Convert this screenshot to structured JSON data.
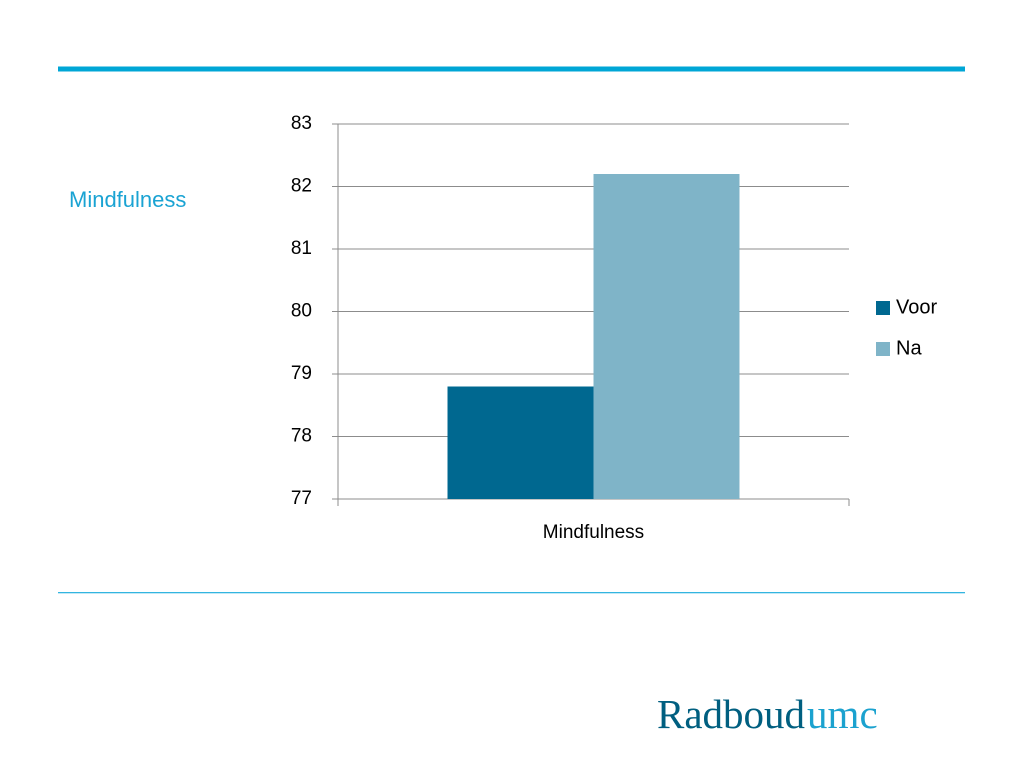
{
  "heading": "Mindfulness",
  "logo": [
    "Radboud",
    "umc"
  ],
  "chart_data": {
    "type": "bar",
    "categories": [
      "Mindfulness"
    ],
    "series": [
      {
        "name": "Voor",
        "color": "#006890",
        "values": [
          78.8
        ]
      },
      {
        "name": "Na",
        "color": "#7fb4c8",
        "values": [
          82.2
        ]
      }
    ],
    "ylim": [
      77,
      83
    ],
    "yticks": [
      77,
      78,
      79,
      80,
      81,
      82,
      83
    ],
    "grid": true,
    "legend": "right"
  }
}
